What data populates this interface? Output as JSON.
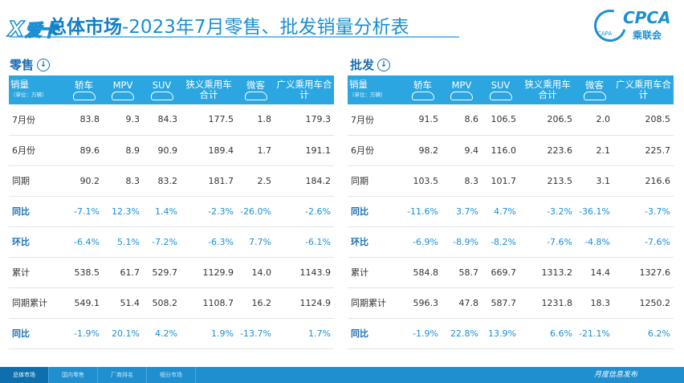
{
  "header": {
    "logo_x": "X",
    "logo_cn": "爱卡",
    "title_bold": "总体市场",
    "title_rest": "-2023年7月零售、批发销量分析表",
    "cpca_en": "CPCA",
    "cpca_cn": "乘联会",
    "cpca_small": "CAPA"
  },
  "left_section": {
    "label": "零售"
  },
  "right_section": {
    "label": "批发"
  },
  "columns": {
    "head_label": "销量",
    "head_unit": "（单位：万辆）",
    "cols": [
      "轿车",
      "MPV",
      "SUV",
      "狭义乘用车合计",
      "微客",
      "广义乘用车合计"
    ]
  },
  "retail": {
    "rows": [
      {
        "label": "7月份",
        "values": [
          "83.8",
          "9.3",
          "84.3",
          "177.5",
          "1.8",
          "179.3"
        ]
      },
      {
        "label": "6月份",
        "values": [
          "89.6",
          "8.9",
          "90.9",
          "189.4",
          "1.7",
          "191.1"
        ]
      },
      {
        "label": "同期",
        "values": [
          "90.2",
          "8.3",
          "83.2",
          "181.7",
          "2.5",
          "184.2"
        ]
      },
      {
        "label": "同比",
        "values": [
          "-7.1%",
          "12.3%",
          "1.4%",
          "-2.3%",
          "-26.0%",
          "-2.6%"
        ]
      },
      {
        "label": "环比",
        "values": [
          "-6.4%",
          "5.1%",
          "-7.2%",
          "-6.3%",
          "7.7%",
          "-6.1%"
        ]
      },
      {
        "label": "累计",
        "values": [
          "538.5",
          "61.7",
          "529.7",
          "1129.9",
          "14.0",
          "1143.9"
        ]
      },
      {
        "label": "同期累计",
        "values": [
          "549.1",
          "51.4",
          "508.2",
          "1108.7",
          "16.2",
          "1124.9"
        ]
      },
      {
        "label": "同比",
        "values": [
          "-1.9%",
          "20.1%",
          "4.2%",
          "1.9%",
          "-13.7%",
          "1.7%"
        ]
      }
    ]
  },
  "wholesale": {
    "rows": [
      {
        "label": "7月份",
        "values": [
          "91.5",
          "8.6",
          "106.5",
          "206.5",
          "2.0",
          "208.5"
        ]
      },
      {
        "label": "6月份",
        "values": [
          "98.2",
          "9.4",
          "116.0",
          "223.6",
          "2.1",
          "225.7"
        ]
      },
      {
        "label": "同期",
        "values": [
          "103.5",
          "8.3",
          "101.7",
          "213.5",
          "3.1",
          "216.6"
        ]
      },
      {
        "label": "同比",
        "values": [
          "-11.6%",
          "3.7%",
          "4.7%",
          "-3.2%",
          "-36.1%",
          "-3.7%"
        ]
      },
      {
        "label": "环比",
        "values": [
          "-6.9%",
          "-8.9%",
          "-8.2%",
          "-7.6%",
          "-4.8%",
          "-7.6%"
        ]
      },
      {
        "label": "累计",
        "values": [
          "584.8",
          "58.7",
          "669.7",
          "1313.2",
          "14.4",
          "1327.6"
        ]
      },
      {
        "label": "同期累计",
        "values": [
          "596.3",
          "47.8",
          "587.7",
          "1231.8",
          "18.3",
          "1250.2"
        ]
      },
      {
        "label": "同比",
        "values": [
          "-1.9%",
          "22.8%",
          "13.9%",
          "6.6%",
          "-21.1%",
          "6.2%"
        ]
      }
    ]
  },
  "footer": {
    "tabs": [
      "总体市场",
      "国内零售",
      "厂商排名",
      "细分市场"
    ],
    "publish": "月度信息发布"
  },
  "colors": {
    "accent": "#1b8fd2",
    "header_bg": "#2ba6e0",
    "pct_text": "#1a8fd6"
  }
}
